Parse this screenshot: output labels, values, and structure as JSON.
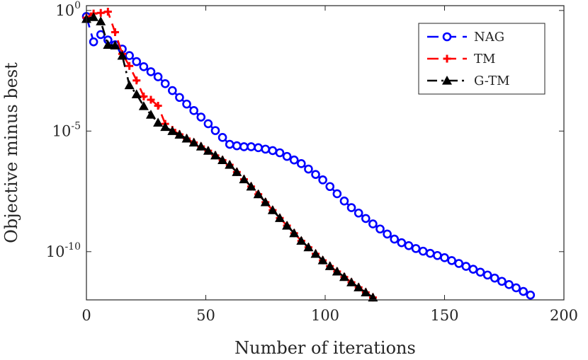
{
  "chart_data": {
    "type": "line",
    "title": "",
    "xlabel": "Number of iterations",
    "ylabel": "Objective minus best",
    "xlim": [
      0,
      200
    ],
    "ylim_log10": [
      -12,
      0.2
    ],
    "yscale": "log",
    "xticks": [
      0,
      50,
      100,
      150,
      200
    ],
    "xtick_labels": [
      "0",
      "50",
      "100",
      "150",
      "200"
    ],
    "yticks": [
      {
        "base": "10",
        "exp": "0",
        "log10": 0
      },
      {
        "base": "10",
        "exp": "-5",
        "log10": -5
      },
      {
        "base": "10",
        "exp": "-10",
        "log10": -10
      }
    ],
    "legend_position": "top-right",
    "series": [
      {
        "name": "NAG",
        "color": "#0000ff",
        "line_style": "dashed",
        "marker": "circle",
        "knots": [
          [
            0,
            -0.25
          ],
          [
            3,
            -1.3
          ],
          [
            6,
            -1.0
          ],
          [
            10,
            -1.3
          ],
          [
            15,
            -1.6
          ],
          [
            20,
            -2.05
          ],
          [
            30,
            -2.75
          ],
          [
            40,
            -3.7
          ],
          [
            50,
            -4.6
          ],
          [
            60,
            -5.55
          ],
          [
            65,
            -5.65
          ],
          [
            70,
            -5.65
          ],
          [
            80,
            -5.85
          ],
          [
            90,
            -6.35
          ],
          [
            100,
            -7.1
          ],
          [
            110,
            -8.1
          ],
          [
            120,
            -8.85
          ],
          [
            130,
            -9.55
          ],
          [
            140,
            -9.95
          ],
          [
            150,
            -10.25
          ],
          [
            160,
            -10.65
          ],
          [
            170,
            -11.05
          ],
          [
            180,
            -11.5
          ],
          [
            187,
            -11.85
          ]
        ]
      },
      {
        "name": "TM",
        "color": "#ff0000",
        "line_style": "dashed",
        "marker": "plus",
        "knots": [
          [
            0,
            -0.3
          ],
          [
            2,
            -0.15
          ],
          [
            4,
            -0.1
          ],
          [
            6,
            -0.1
          ],
          [
            9,
            -0.05
          ],
          [
            12,
            -0.9
          ],
          [
            14,
            -1.6
          ],
          [
            17,
            -2.2
          ],
          [
            20,
            -2.5
          ],
          [
            22,
            -3.3
          ],
          [
            25,
            -3.7
          ],
          [
            27,
            -3.7
          ],
          [
            30,
            -3.95
          ],
          [
            33,
            -4.7
          ],
          [
            36,
            -4.95
          ],
          [
            40,
            -5.2
          ],
          [
            50,
            -5.75
          ],
          [
            60,
            -6.4
          ],
          [
            70,
            -7.4
          ],
          [
            80,
            -8.5
          ],
          [
            90,
            -9.55
          ],
          [
            100,
            -10.45
          ],
          [
            110,
            -11.2
          ],
          [
            120,
            -11.9
          ]
        ]
      },
      {
        "name": "G-TM",
        "color": "#000000",
        "line_style": "dash-dot",
        "marker": "triangle",
        "knots": [
          [
            0,
            -0.35
          ],
          [
            2,
            -0.25
          ],
          [
            4,
            -0.3
          ],
          [
            6,
            -0.45
          ],
          [
            8,
            -1.45
          ],
          [
            10,
            -1.4
          ],
          [
            12,
            -1.45
          ],
          [
            14,
            -1.55
          ],
          [
            16,
            -2.2
          ],
          [
            18,
            -3.1
          ],
          [
            20,
            -3.25
          ],
          [
            22,
            -3.7
          ],
          [
            25,
            -4.1
          ],
          [
            30,
            -4.65
          ],
          [
            35,
            -4.95
          ],
          [
            40,
            -5.2
          ],
          [
            50,
            -5.75
          ],
          [
            60,
            -6.4
          ],
          [
            70,
            -7.4
          ],
          [
            80,
            -8.5
          ],
          [
            90,
            -9.55
          ],
          [
            100,
            -10.45
          ],
          [
            110,
            -11.2
          ],
          [
            120,
            -11.9
          ]
        ]
      }
    ]
  }
}
